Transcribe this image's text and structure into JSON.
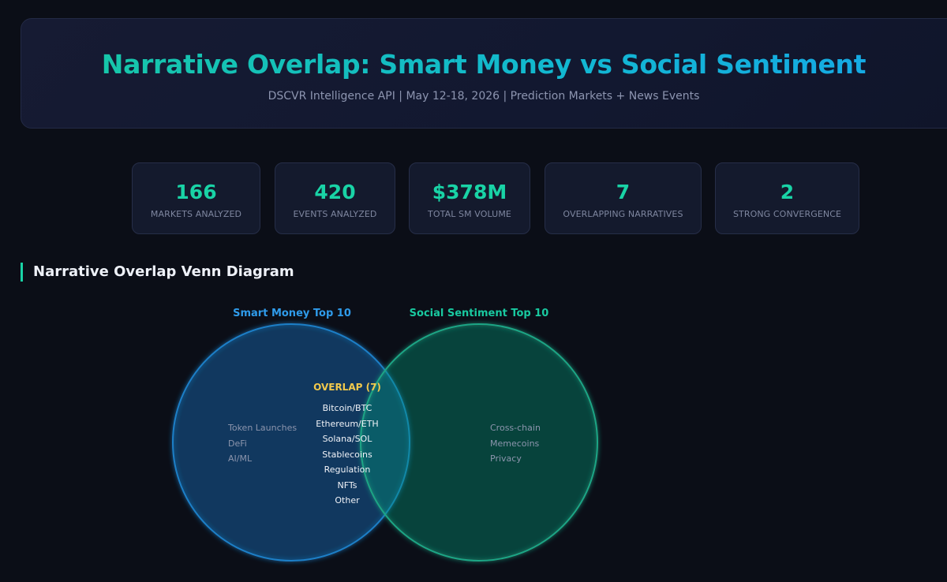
{
  "header": {
    "title": "Narrative Overlap: Smart Money vs Social Sentiment",
    "subtitle": "DSCVR Intelligence API | May 12-18, 2026 | Prediction Markets + News Events"
  },
  "stats": [
    {
      "value": "166",
      "label": "MARKETS ANALYZED"
    },
    {
      "value": "420",
      "label": "EVENTS ANALYZED"
    },
    {
      "value": "$378M",
      "label": "TOTAL SM VOLUME"
    },
    {
      "value": "7",
      "label": "OVERLAPPING NARRATIVES"
    },
    {
      "value": "2",
      "label": "STRONG CONVERGENCE"
    }
  ],
  "venn": {
    "section_title": "Narrative Overlap Venn Diagram",
    "set_a": {
      "title": "Smart Money Top 10",
      "color": "#2f9bea",
      "only": [
        "Token Launches",
        "DeFi",
        "AI/ML"
      ]
    },
    "set_b": {
      "title": "Social Sentiment Top 10",
      "color": "#19c9a0",
      "only": [
        "Cross-chain",
        "Memecoins",
        "Privacy"
      ]
    },
    "overlap": {
      "title": "OVERLAP (7)",
      "color": "#f2c94c",
      "items": [
        "Bitcoin/BTC",
        "Ethereum/ETH",
        "Solana/SOL",
        "Stablecoins",
        "Regulation",
        "NFTs",
        "Other"
      ]
    }
  }
}
